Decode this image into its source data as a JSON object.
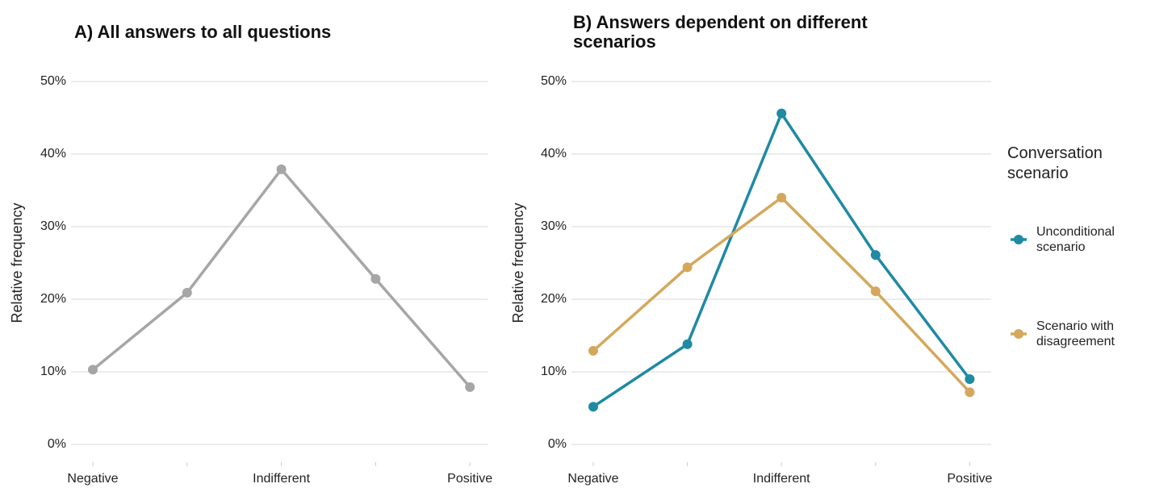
{
  "chart_data": [
    {
      "type": "line",
      "title": "A) All answers to all questions",
      "y_label": "Relative frequency",
      "categories": [
        "Negative",
        null,
        "Indifferent",
        null,
        "Positive"
      ],
      "values": [
        10.3,
        20.9,
        37.9,
        22.8,
        7.9
      ],
      "color": "#a6a6a6",
      "ylim": [
        0,
        50
      ],
      "yticks": [
        {
          "value": 0,
          "label": "0%"
        },
        {
          "value": 10,
          "label": "10%"
        },
        {
          "value": 20,
          "label": "20%"
        },
        {
          "value": 30,
          "label": "30%"
        },
        {
          "value": 40,
          "label": "40%"
        },
        {
          "value": 50,
          "label": "50%"
        }
      ],
      "grid": true
    },
    {
      "type": "line",
      "title": "B) Answers dependent on different scenarios",
      "y_label": "Relative frequency",
      "categories": [
        "Negative",
        null,
        "Indifferent",
        null,
        "Positive"
      ],
      "legend_title": "Conversation scenario",
      "series": [
        {
          "name": "Unconditional scenario",
          "color": "#1f8aa3",
          "values": [
            5.2,
            13.8,
            45.6,
            26.1,
            9.0
          ]
        },
        {
          "name": "Scenario with disagreement",
          "color": "#d4a85c",
          "values": [
            12.9,
            24.4,
            34.0,
            21.1,
            7.2
          ]
        }
      ],
      "ylim": [
        0,
        50
      ],
      "yticks": [
        {
          "value": 0,
          "label": "0%"
        },
        {
          "value": 10,
          "label": "10%"
        },
        {
          "value": 20,
          "label": "20%"
        },
        {
          "value": 30,
          "label": "30%"
        },
        {
          "value": 40,
          "label": "40%"
        },
        {
          "value": 50,
          "label": "50%"
        }
      ],
      "grid": true
    }
  ]
}
